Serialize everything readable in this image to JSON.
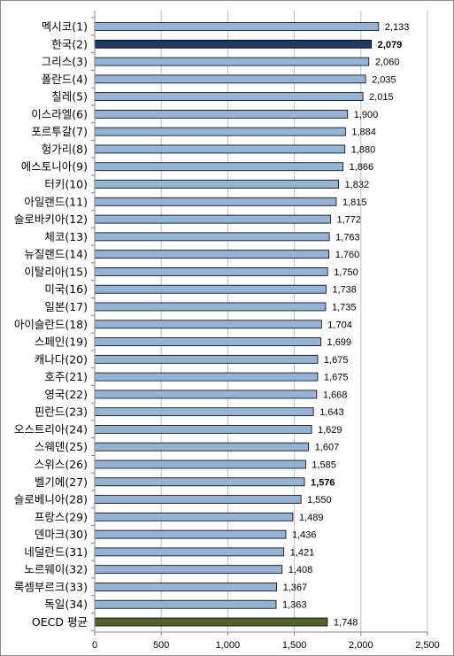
{
  "chart_data": {
    "type": "bar",
    "orientation": "horizontal",
    "title": "",
    "xlabel": "",
    "ylabel": "",
    "xlim": [
      0,
      2500
    ],
    "x_ticks": [
      0,
      500,
      1000,
      1500,
      2000,
      2500
    ],
    "x_tick_labels": [
      "0",
      "500",
      "1,000",
      "1,500",
      "2,000",
      "2,500"
    ],
    "grid": "vertical gridlines",
    "legend": "none",
    "colors": {
      "default": "#95b3d7",
      "highlight": "#1f3864",
      "average": "#4f6228",
      "gridline": "#c0c0c0",
      "bar_border": "#000000"
    },
    "categories": [
      "멕시코(1)",
      "한국(2)",
      "그리스(3)",
      "폴란드(4)",
      "칠레(5)",
      "이스라엘(6)",
      "포르투갈(7)",
      "헝가리(8)",
      "에스토니아(9)",
      "터키(10)",
      "아일랜드(11)",
      "슬로바키아(12)",
      "체코(13)",
      "뉴질랜드(14)",
      "이탈리아(15)",
      "미국(16)",
      "일본(17)",
      "아이슬란드(18)",
      "스페인(19)",
      "캐나다(20)",
      "호주(21)",
      "영국(22)",
      "핀란드(23)",
      "오스트리아(24)",
      "스웨덴(25)",
      "스위스(26)",
      "벨기에(27)",
      "슬로베니아(28)",
      "프랑스(29)",
      "덴마크(30)",
      "네덜란드(31)",
      "노르웨이(32)",
      "룩셈부르크(33)",
      "독일(34)",
      "OECD 평균"
    ],
    "values": [
      2133,
      2079,
      2060,
      2035,
      2015,
      1900,
      1884,
      1880,
      1866,
      1832,
      1815,
      1772,
      1763,
      1760,
      1750,
      1738,
      1735,
      1704,
      1699,
      1675,
      1675,
      1668,
      1643,
      1629,
      1607,
      1585,
      1576,
      1550,
      1489,
      1436,
      1421,
      1408,
      1367,
      1363,
      1748
    ],
    "value_labels": [
      "2,133",
      "2,079",
      "2,060",
      "2,035",
      "2,015",
      "1,900",
      "1,884",
      "1,880",
      "1,866",
      "1,832",
      "1,815",
      "1,772",
      "1,763",
      "1,760",
      "1,750",
      "1,738",
      "1,735",
      "1,704",
      "1,699",
      "1,675",
      "1,675",
      "1,668",
      "1,643",
      "1,629",
      "1,607",
      "1,585",
      "1,576",
      "1,550",
      "1,489",
      "1,436",
      "1,421",
      "1,408",
      "1,367",
      "1,363",
      "1,748"
    ],
    "bold_value_labels": [
      "한국(2)",
      "벨기에(27)"
    ],
    "highlighted_category": "한국(2)",
    "average_category": "OECD 평균"
  }
}
